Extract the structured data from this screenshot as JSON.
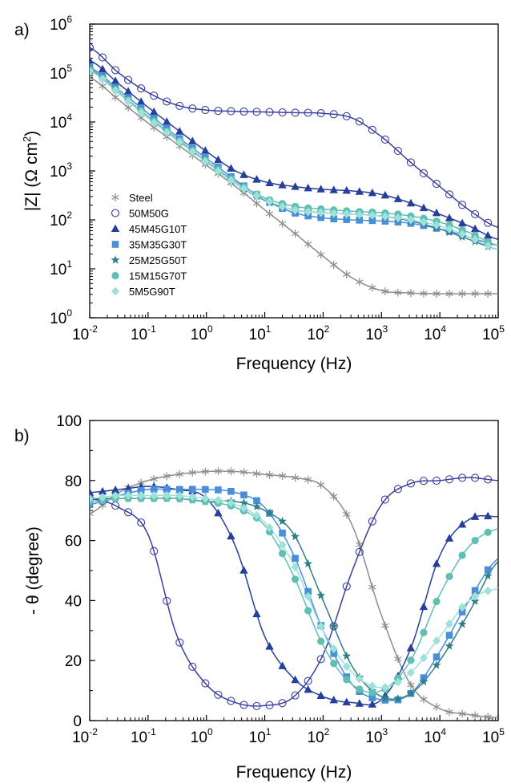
{
  "colors": {
    "Steel": "#8c8c8c",
    "50M50G": "#3b3f9c",
    "45M45G10T": "#263f9a",
    "35M35G30T": "#4a8ed8",
    "25M25G50T": "#2f7f86",
    "15M15G70T": "#5fbfb1",
    "5M5G90T": "#9ee0dc"
  },
  "chart_data": [
    {
      "panel_label": "a)",
      "type": "scatter",
      "xlabel": "Frequency (Hz)",
      "ylabel_main": "|Z| (",
      "ylabel_greek": "Ω",
      "ylabel_unit": " cm",
      "ylabel_unit_sup": "2",
      "ylabel_close": ")",
      "xscale": "log",
      "yscale": "log",
      "xlim": [
        0.01,
        100000
      ],
      "ylim": [
        1,
        1000000
      ],
      "x_ticks": [
        {
          "base": "10",
          "exp": "-2"
        },
        {
          "base": "10",
          "exp": "-1"
        },
        {
          "base": "10",
          "exp": "0"
        },
        {
          "base": "10",
          "exp": "1"
        },
        {
          "base": "10",
          "exp": "2"
        },
        {
          "base": "10",
          "exp": "3"
        },
        {
          "base": "10",
          "exp": "4"
        },
        {
          "base": "10",
          "exp": "5"
        }
      ],
      "y_ticks": [
        {
          "base": "10",
          "exp": "0"
        },
        {
          "base": "10",
          "exp": "1"
        },
        {
          "base": "10",
          "exp": "2"
        },
        {
          "base": "10",
          "exp": "3"
        },
        {
          "base": "10",
          "exp": "4"
        },
        {
          "base": "10",
          "exp": "5"
        },
        {
          "base": "10",
          "exp": "6"
        }
      ],
      "legend_placement": "lower-left",
      "legend": [
        {
          "name": "Steel",
          "marker": "asterisk"
        },
        {
          "name": "50M50G",
          "marker": "circle-open"
        },
        {
          "name": "45M45G10T",
          "marker": "triangle"
        },
        {
          "name": "35M35G30T",
          "marker": "square"
        },
        {
          "name": "25M25G50T",
          "marker": "star"
        },
        {
          "name": "15M15G70T",
          "marker": "circle"
        },
        {
          "name": "5M5G90T",
          "marker": "diamond"
        }
      ],
      "x": [
        0.01,
        0.0316,
        0.1,
        0.316,
        1,
        3.16,
        10,
        31.6,
        100,
        316,
        1000,
        3160,
        10000,
        31600,
        100000
      ],
      "series": [
        {
          "name": "Steel",
          "values": [
            80000,
            28000,
            9500,
            3500,
            1300,
            480,
            160,
            55,
            18,
            6.5,
            3.6,
            3.2,
            3.1,
            3.1,
            3.1
          ]
        },
        {
          "name": "50M50G",
          "values": [
            330000,
            100000,
            40000,
            22000,
            17500,
            16500,
            16000,
            15500,
            15000,
            12000,
            5000,
            1500,
            480,
            160,
            70
          ]
        },
        {
          "name": "45M45G10T",
          "values": [
            180000,
            60000,
            20000,
            7000,
            2500,
            1000,
            600,
            480,
            420,
            390,
            330,
            220,
            130,
            75,
            40
          ]
        },
        {
          "name": "35M35G30T",
          "values": [
            130000,
            45000,
            15000,
            5000,
            1800,
            650,
            260,
            140,
            110,
            100,
            95,
            85,
            65,
            45,
            30
          ]
        },
        {
          "name": "25M25G50T",
          "values": [
            120000,
            40000,
            13000,
            4500,
            1500,
            550,
            250,
            160,
            140,
            130,
            120,
            95,
            65,
            40,
            25
          ]
        },
        {
          "name": "15M15G70T",
          "values": [
            115000,
            40000,
            13000,
            4500,
            1600,
            600,
            280,
            190,
            165,
            150,
            140,
            120,
            90,
            55,
            30
          ]
        },
        {
          "name": "5M5G90T",
          "values": [
            110000,
            38000,
            12000,
            4200,
            1500,
            550,
            260,
            160,
            140,
            130,
            120,
            100,
            75,
            45,
            25
          ]
        }
      ]
    },
    {
      "panel_label": "b)",
      "type": "scatter",
      "xlabel": "Frequency (Hz)",
      "ylabel_main": "- ",
      "ylabel_greek": "θ",
      "ylabel_unit": " (degree)",
      "xscale": "log",
      "xlim": [
        0.01,
        100000
      ],
      "ylim": [
        0,
        100
      ],
      "x_ticks": [
        {
          "base": "10",
          "exp": "-2"
        },
        {
          "base": "10",
          "exp": "-1"
        },
        {
          "base": "10",
          "exp": "0"
        },
        {
          "base": "10",
          "exp": "1"
        },
        {
          "base": "10",
          "exp": "2"
        },
        {
          "base": "10",
          "exp": "3"
        },
        {
          "base": "10",
          "exp": "4"
        },
        {
          "base": "10",
          "exp": "5"
        }
      ],
      "y_ticks": [
        "0",
        "20",
        "40",
        "60",
        "80",
        "100"
      ],
      "x": [
        0.01,
        0.0316,
        0.1,
        0.316,
        1,
        3.16,
        10,
        31.6,
        100,
        316,
        1000,
        3160,
        10000,
        31600,
        100000
      ],
      "series": [
        {
          "name": "Steel",
          "values": [
            69,
            76,
            80,
            82,
            83,
            83,
            82,
            81,
            78,
            65,
            35,
            12,
            4,
            2,
            1
          ]
        },
        {
          "name": "50M50G",
          "values": [
            74,
            71,
            62,
            28,
            12,
            6,
            5,
            8,
            22,
            50,
            72,
            79,
            80,
            81,
            80
          ]
        },
        {
          "name": "45M45G10T",
          "values": [
            76,
            77,
            78,
            77,
            74,
            58,
            28,
            14,
            8,
            6,
            7,
            24,
            55,
            67,
            68
          ]
        },
        {
          "name": "35M35G30T",
          "values": [
            72,
            75,
            77,
            77,
            77,
            76,
            71,
            55,
            30,
            12,
            7,
            9,
            23,
            40,
            54
          ]
        },
        {
          "name": "25M25G50T",
          "values": [
            74,
            74,
            74,
            74,
            73,
            73,
            70,
            62,
            40,
            18,
            8,
            9,
            20,
            36,
            53
          ]
        },
        {
          "name": "15M15G70T",
          "values": [
            73,
            74,
            74,
            74,
            73,
            71,
            65,
            48,
            25,
            12,
            10,
            20,
            42,
            58,
            64
          ]
        },
        {
          "name": "5M5G90T",
          "values": [
            74,
            75,
            75,
            75,
            74,
            72,
            66,
            52,
            30,
            16,
            11,
            16,
            28,
            40,
            44
          ]
        }
      ]
    }
  ]
}
